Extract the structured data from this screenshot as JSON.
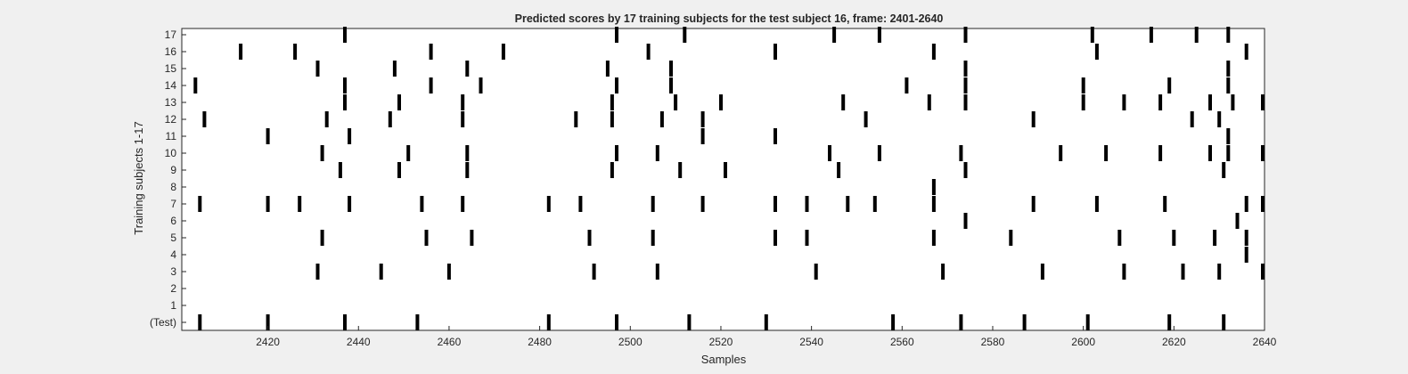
{
  "chart_data": {
    "type": "raster",
    "title": "Predicted scores by 17 training subjects for the test subject 16, frame: 2401-2640",
    "xlabel": "Samples",
    "ylabel": "Training subjects 1-17",
    "xlim": [
      2401,
      2640
    ],
    "xticks": [
      2420,
      2440,
      2460,
      2480,
      2500,
      2520,
      2540,
      2560,
      2580,
      2600,
      2620,
      2640
    ],
    "yticklabels": [
      "(Test)",
      "1",
      "2",
      "3",
      "4",
      "5",
      "6",
      "7",
      "8",
      "9",
      "10",
      "11",
      "12",
      "13",
      "14",
      "15",
      "16",
      "17"
    ],
    "grid": false,
    "rows": [
      {
        "label": "(Test)",
        "x": [
          2405,
          2420,
          2437,
          2453,
          2482,
          2497,
          2513,
          2530,
          2558,
          2573,
          2587,
          2601,
          2619,
          2631
        ]
      },
      {
        "label": "1",
        "x": []
      },
      {
        "label": "2",
        "x": []
      },
      {
        "label": "3",
        "x": [
          2431,
          2445,
          2460,
          2492,
          2506,
          2541,
          2569,
          2591,
          2609,
          2622,
          2630,
          2640
        ]
      },
      {
        "label": "4",
        "x": [
          2636
        ]
      },
      {
        "label": "5",
        "x": [
          2432,
          2455,
          2465,
          2491,
          2505,
          2532,
          2539,
          2567,
          2584,
          2608,
          2620,
          2629,
          2636
        ]
      },
      {
        "label": "6",
        "x": [
          2574,
          2634
        ]
      },
      {
        "label": "7",
        "x": [
          2405,
          2420,
          2427,
          2438,
          2454,
          2463,
          2482,
          2489,
          2505,
          2516,
          2532,
          2539,
          2548,
          2554,
          2567,
          2589,
          2603,
          2618,
          2636,
          2641
        ]
      },
      {
        "label": "8",
        "x": [
          2567
        ]
      },
      {
        "label": "9",
        "x": [
          2436,
          2449,
          2464,
          2496,
          2511,
          2521,
          2546,
          2574,
          2631
        ]
      },
      {
        "label": "10",
        "x": [
          2432,
          2451,
          2464,
          2497,
          2506,
          2544,
          2555,
          2573,
          2595,
          2605,
          2617,
          2628,
          2632,
          2640
        ]
      },
      {
        "label": "11",
        "x": [
          2420,
          2438,
          2516,
          2532,
          2632
        ]
      },
      {
        "label": "12",
        "x": [
          2406,
          2433,
          2447,
          2463,
          2488,
          2496,
          2507,
          2516,
          2552,
          2589,
          2624,
          2630
        ]
      },
      {
        "label": "13",
        "x": [
          2437,
          2449,
          2463,
          2496,
          2510,
          2520,
          2547,
          2566,
          2574,
          2600,
          2609,
          2617,
          2628,
          2633,
          2641
        ]
      },
      {
        "label": "14",
        "x": [
          2404,
          2437,
          2456,
          2467,
          2497,
          2509,
          2561,
          2574,
          2600,
          2619,
          2632
        ]
      },
      {
        "label": "15",
        "x": [
          2431,
          2448,
          2464,
          2495,
          2509,
          2574,
          2632
        ]
      },
      {
        "label": "16",
        "x": [
          2414,
          2426,
          2456,
          2472,
          2504,
          2532,
          2567,
          2603,
          2636
        ]
      },
      {
        "label": "17",
        "x": [
          2437,
          2497,
          2512,
          2545,
          2555,
          2574,
          2602,
          2615,
          2625,
          2632
        ]
      }
    ]
  }
}
